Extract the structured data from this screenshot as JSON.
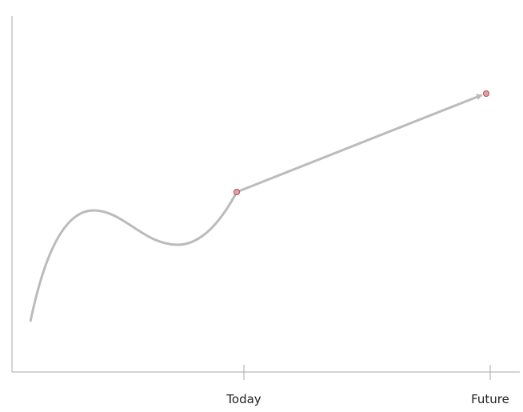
{
  "axis": {
    "labels": [
      "Today",
      "Future"
    ]
  }
}
